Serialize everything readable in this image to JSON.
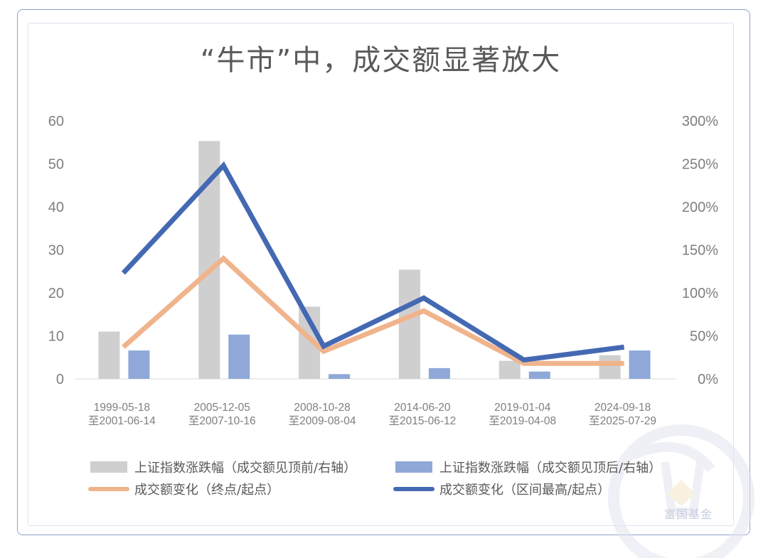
{
  "chart_data": {
    "type": "bar",
    "title": "“牛市”中，成交额显著放大",
    "categories": [
      [
        "1999-05-18",
        "至2001-06-14"
      ],
      [
        "2005-12-05",
        "至2007-10-16"
      ],
      [
        "2008-10-28",
        "至2009-08-04"
      ],
      [
        "2014-06-20",
        "至2015-06-12"
      ],
      [
        "2019-01-04",
        "至2019-04-08"
      ],
      [
        "2024-09-18",
        "至2025-07-29"
      ]
    ],
    "y_left": {
      "ticks": [
        "0",
        "10",
        "20",
        "30",
        "40",
        "50",
        "60"
      ],
      "ylim": [
        0,
        60
      ]
    },
    "y_right": {
      "ticks": [
        "0%",
        "50%",
        "100%",
        "150%",
        "200%",
        "250%",
        "300%"
      ],
      "ylim": [
        0,
        300
      ]
    },
    "grid": false,
    "legend_position": "bottom",
    "series": [
      {
        "name": "上证指数涨跌幅（成交额见顶前/右轴）",
        "kind": "bar",
        "axis": "left",
        "color": "#d0cfd0",
        "values": [
          11,
          55.3,
          16.8,
          25.4,
          4.2,
          5.5
        ]
      },
      {
        "name": "上证指数涨跌幅（成交额见顶后/右轴）",
        "kind": "bar",
        "axis": "left",
        "color": "#8fa8d8",
        "values": [
          6.6,
          10.3,
          1.1,
          2.5,
          1.7,
          6.6
        ]
      },
      {
        "name": "成交额变化（终点/起点）",
        "kind": "line",
        "axis": "right",
        "color": "#f0b48c",
        "values": [
          37,
          140,
          32,
          79,
          18,
          18
        ]
      },
      {
        "name": "成交额变化（区间最高/起点）",
        "kind": "line",
        "axis": "right",
        "color": "#4469b3",
        "values": [
          123,
          248,
          38,
          94,
          22,
          37
        ]
      }
    ]
  },
  "watermark": {
    "text": "富国基金"
  }
}
